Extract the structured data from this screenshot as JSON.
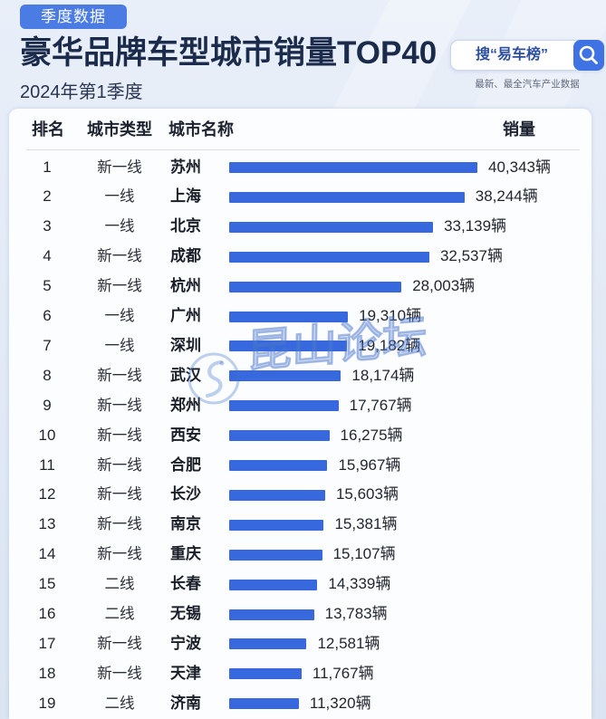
{
  "badge": "季度数据",
  "search": {
    "text": "搜“易车榜”",
    "icon": "search-icon"
  },
  "tagline": "最新、最全汽车产业数据",
  "watermark": {
    "text": "昆山论坛",
    "logo_icon": "watermark-logo-icon"
  },
  "colors": {
    "badge": "#4a7ce4",
    "title": "#1b2b4b",
    "bar": "#3768de",
    "search_button": "#3f73e3",
    "search_text": "#2d4f9e"
  },
  "chart_data": {
    "type": "bar",
    "orientation": "horizontal",
    "title": "豪华品牌车型城市销量TOP40",
    "subtitle": "2024年第1季度",
    "columns": [
      "排名",
      "城市类型",
      "城市名称",
      "销量"
    ],
    "ranks": [
      "1",
      "2",
      "3",
      "4",
      "5",
      "6",
      "7",
      "8",
      "9",
      "10",
      "11",
      "12",
      "13",
      "14",
      "15",
      "16",
      "17",
      "18",
      "19"
    ],
    "tiers": [
      "新一线",
      "一线",
      "一线",
      "新一线",
      "新一线",
      "一线",
      "一线",
      "新一线",
      "新一线",
      "新一线",
      "新一线",
      "新一线",
      "新一线",
      "新一线",
      "二线",
      "二线",
      "新一线",
      "新一线",
      "二线"
    ],
    "categories": [
      "苏州",
      "上海",
      "北京",
      "成都",
      "杭州",
      "广州",
      "深圳",
      "武汉",
      "郑州",
      "西安",
      "合肥",
      "长沙",
      "南京",
      "重庆",
      "长春",
      "无锡",
      "宁波",
      "天津",
      "济南"
    ],
    "values": [
      40343,
      38244,
      33139,
      32537,
      28003,
      19310,
      19182,
      18174,
      17767,
      16275,
      15967,
      15603,
      15381,
      15107,
      14339,
      13783,
      12581,
      11767,
      11320
    ],
    "value_labels": [
      "40,343辆",
      "38,244辆",
      "33,139辆",
      "32,537辆",
      "28,003辆",
      "19,310辆",
      "19,182辆",
      "18,174辆",
      "17,767辆",
      "16,275辆",
      "15,967辆",
      "15,603辆",
      "15,381辆",
      "15,107辆",
      "14,339辆",
      "13,783辆",
      "12,581辆",
      "11,767辆",
      "11,320辆"
    ]
  }
}
